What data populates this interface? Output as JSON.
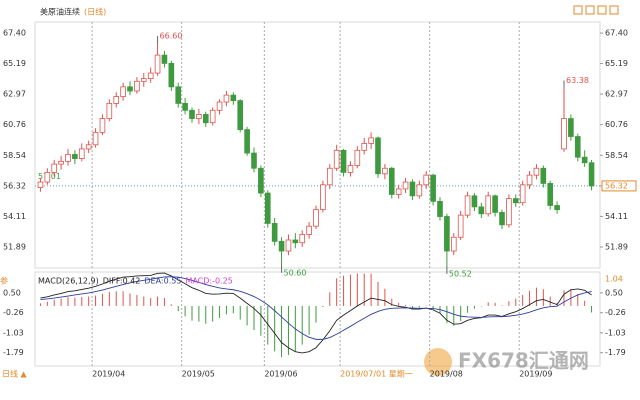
{
  "chart_data": {
    "type": "candlestick",
    "title": "美原油连续",
    "period": "(日线)",
    "ylim": [
      50.37,
      68.2
    ],
    "yticks": [
      {
        "value": 67.4,
        "label": "67.40"
      },
      65.19,
      62.97,
      60.76,
      58.54,
      56.32,
      54.11,
      51.89
    ],
    "xticks": [
      {
        "value": 8,
        "label": "2019/04"
      },
      {
        "value": 21,
        "label": "2019/05"
      },
      {
        "value": 33,
        "label": "2019/06"
      },
      {
        "value": 44,
        "label": "2019/07/01 星期一"
      },
      {
        "value": 57,
        "label": "2019/08"
      },
      {
        "value": 70,
        "label": "2019/09"
      }
    ],
    "highlight_xtick": 3,
    "up_color": "#e0524c",
    "down_color": "#3f9a3f",
    "ohlc": [
      [
        56.2,
        56.9,
        55.9,
        56.6
      ],
      [
        56.6,
        57.6,
        56.4,
        57.3
      ],
      [
        57.3,
        58.2,
        57.0,
        57.9
      ],
      [
        57.9,
        58.5,
        57.5,
        58.1
      ],
      [
        58.1,
        59.0,
        57.8,
        58.6
      ],
      [
        58.6,
        58.9,
        57.9,
        58.3
      ],
      [
        58.3,
        59.4,
        58.1,
        59.0
      ],
      [
        59.0,
        59.6,
        58.7,
        59.3
      ],
      [
        59.3,
        60.5,
        59.1,
        60.2
      ],
      [
        60.2,
        61.5,
        60.0,
        61.2
      ],
      [
        61.2,
        62.6,
        61.0,
        62.3
      ],
      [
        62.3,
        63.1,
        62.0,
        62.8
      ],
      [
        62.8,
        63.8,
        62.5,
        63.5
      ],
      [
        63.5,
        63.9,
        62.9,
        63.2
      ],
      [
        63.2,
        64.2,
        63.0,
        63.9
      ],
      [
        63.9,
        64.5,
        63.5,
        64.1
      ],
      [
        64.1,
        64.9,
        63.8,
        64.5
      ],
      [
        64.5,
        66.6,
        64.3,
        65.8
      ],
      [
        65.8,
        66.1,
        64.9,
        65.2
      ],
      [
        65.2,
        65.4,
        63.2,
        63.5
      ],
      [
        63.5,
        63.8,
        62.0,
        62.3
      ],
      [
        62.3,
        62.7,
        61.5,
        61.8
      ],
      [
        61.8,
        62.0,
        60.9,
        61.2
      ],
      [
        61.2,
        61.9,
        60.8,
        61.5
      ],
      [
        61.5,
        61.7,
        60.6,
        60.9
      ],
      [
        60.9,
        62.0,
        60.7,
        61.8
      ],
      [
        61.8,
        62.6,
        61.5,
        62.4
      ],
      [
        62.4,
        63.2,
        62.1,
        62.9
      ],
      [
        62.9,
        63.1,
        62.2,
        62.5
      ],
      [
        62.5,
        62.6,
        60.2,
        60.4
      ],
      [
        60.4,
        60.6,
        58.5,
        58.7
      ],
      [
        58.7,
        59.1,
        57.3,
        57.6
      ],
      [
        57.6,
        57.8,
        55.5,
        55.8
      ],
      [
        55.8,
        56.0,
        53.3,
        53.6
      ],
      [
        53.6,
        54.0,
        52.0,
        52.3
      ],
      [
        52.3,
        52.6,
        50.6,
        51.6
      ],
      [
        51.6,
        52.8,
        51.3,
        52.4
      ],
      [
        52.4,
        52.9,
        51.8,
        52.2
      ],
      [
        52.2,
        53.1,
        51.9,
        52.8
      ],
      [
        52.8,
        53.7,
        52.5,
        53.4
      ],
      [
        53.4,
        54.9,
        53.2,
        54.6
      ],
      [
        54.6,
        56.7,
        54.4,
        56.4
      ],
      [
        56.4,
        57.9,
        56.1,
        57.6
      ],
      [
        57.6,
        59.3,
        57.4,
        58.9
      ],
      [
        58.9,
        59.0,
        57.0,
        57.3
      ],
      [
        57.3,
        58.1,
        57.0,
        57.8
      ],
      [
        57.8,
        59.2,
        57.6,
        58.9
      ],
      [
        58.9,
        59.8,
        58.6,
        59.4
      ],
      [
        59.4,
        60.2,
        59.0,
        59.8
      ],
      [
        59.8,
        59.9,
        56.9,
        57.2
      ],
      [
        57.2,
        57.9,
        56.8,
        57.6
      ],
      [
        57.6,
        57.7,
        55.4,
        55.7
      ],
      [
        55.7,
        56.4,
        55.4,
        56.1
      ],
      [
        56.1,
        56.9,
        55.8,
        56.6
      ],
      [
        56.6,
        56.8,
        55.3,
        55.6
      ],
      [
        55.6,
        56.7,
        55.4,
        56.4
      ],
      [
        56.4,
        57.4,
        56.1,
        57.1
      ],
      [
        57.1,
        57.2,
        54.9,
        55.2
      ],
      [
        55.2,
        55.5,
        53.8,
        54.1
      ],
      [
        54.1,
        54.3,
        50.52,
        51.6
      ],
      [
        51.6,
        52.9,
        51.3,
        52.6
      ],
      [
        52.6,
        54.5,
        52.4,
        54.2
      ],
      [
        54.2,
        55.9,
        54.0,
        55.6
      ],
      [
        55.6,
        55.8,
        54.5,
        54.8
      ],
      [
        54.8,
        55.1,
        54.0,
        54.3
      ],
      [
        54.3,
        55.9,
        54.1,
        55.6
      ],
      [
        55.6,
        55.7,
        54.1,
        54.4
      ],
      [
        54.4,
        54.6,
        53.2,
        53.5
      ],
      [
        53.5,
        55.7,
        53.3,
        55.4
      ],
      [
        55.4,
        55.7,
        54.8,
        55.1
      ],
      [
        55.1,
        56.7,
        54.9,
        56.4
      ],
      [
        56.4,
        57.4,
        56.1,
        57.1
      ],
      [
        57.1,
        57.9,
        56.8,
        57.6
      ],
      [
        57.6,
        57.8,
        56.2,
        56.5
      ],
      [
        56.5,
        56.7,
        54.6,
        54.9
      ],
      [
        54.9,
        55.2,
        54.3,
        54.6
      ],
      [
        59.0,
        63.38,
        58.8,
        61.2
      ],
      [
        61.2,
        61.5,
        59.6,
        59.9
      ],
      [
        59.9,
        60.1,
        58.1,
        58.4
      ],
      [
        58.4,
        58.9,
        57.7,
        58.0
      ],
      [
        58.0,
        58.2,
        56.0,
        56.32
      ]
    ],
    "extremes": [
      {
        "value": 66.6,
        "label": "66.60",
        "kind": "high"
      },
      {
        "value": 50.6,
        "label": "50.60",
        "kind": "low"
      },
      {
        "value": 50.52,
        "label": "50.52",
        "kind": "low"
      },
      {
        "value": 63.38,
        "label": "63.38",
        "kind": "high"
      }
    ],
    "left_price": {
      "value": 57.01,
      "label": "57.01"
    },
    "current_price": 56.32,
    "macd": {
      "legend": [
        "MACD(26,12,9)",
        "DIFF:0.42",
        "DEA:0.55",
        "MACD:-0.25"
      ],
      "legend_colors": [
        "#222222",
        "#222222",
        "#2b3f9e",
        "#d03fd0"
      ],
      "ylim": [
        -2.3,
        1.3
      ],
      "yticks": [
        {
          "value": 0.5,
          "label": "0.50"
        },
        -0.26,
        -1.03,
        -1.79
      ],
      "marker": {
        "value": 1.04,
        "label": "1.04"
      },
      "diff_color": "#222222",
      "dea_color": "#2b3f9e",
      "diff": [
        0.3,
        0.35,
        0.42,
        0.48,
        0.55,
        0.58,
        0.63,
        0.68,
        0.75,
        0.84,
        0.95,
        1.03,
        1.1,
        1.12,
        1.15,
        1.16,
        1.17,
        1.25,
        1.26,
        1.15,
        1.0,
        0.85,
        0.7,
        0.6,
        0.48,
        0.45,
        0.46,
        0.49,
        0.48,
        0.3,
        0.1,
        -0.1,
        -0.35,
        -0.7,
        -1.05,
        -1.4,
        -1.6,
        -1.75,
        -1.8,
        -1.75,
        -1.6,
        -1.3,
        -0.95,
        -0.55,
        -0.35,
        -0.18,
        0.0,
        0.15,
        0.3,
        0.25,
        0.2,
        0.05,
        -0.02,
        -0.05,
        -0.12,
        -0.12,
        -0.08,
        -0.15,
        -0.28,
        -0.55,
        -0.7,
        -0.68,
        -0.55,
        -0.48,
        -0.45,
        -0.35,
        -0.35,
        -0.4,
        -0.3,
        -0.22,
        -0.1,
        0.05,
        0.2,
        0.25,
        0.15,
        0.05,
        0.45,
        0.62,
        0.65,
        0.6,
        0.42
      ],
      "dea": [
        0.25,
        0.27,
        0.3,
        0.34,
        0.38,
        0.42,
        0.46,
        0.5,
        0.55,
        0.61,
        0.68,
        0.75,
        0.82,
        0.88,
        0.94,
        0.98,
        1.02,
        1.07,
        1.11,
        1.12,
        1.1,
        1.05,
        0.98,
        0.9,
        0.82,
        0.75,
        0.69,
        0.65,
        0.62,
        0.56,
        0.47,
        0.36,
        0.22,
        0.04,
        -0.18,
        -0.42,
        -0.66,
        -0.88,
        -1.06,
        -1.2,
        -1.28,
        -1.28,
        -1.21,
        -1.08,
        -0.93,
        -0.78,
        -0.62,
        -0.47,
        -0.32,
        -0.21,
        -0.13,
        -0.09,
        -0.08,
        -0.07,
        -0.08,
        -0.09,
        -0.09,
        -0.1,
        -0.14,
        -0.22,
        -0.32,
        -0.39,
        -0.42,
        -0.43,
        -0.44,
        -0.42,
        -0.41,
        -0.41,
        -0.39,
        -0.36,
        -0.31,
        -0.24,
        -0.15,
        -0.07,
        -0.03,
        -0.01,
        0.15,
        0.3,
        0.42,
        0.5,
        0.55
      ],
      "hist": [
        0.1,
        0.16,
        0.24,
        0.28,
        0.34,
        0.32,
        0.34,
        0.36,
        0.4,
        0.46,
        0.54,
        0.56,
        0.56,
        0.48,
        0.42,
        0.36,
        0.3,
        0.36,
        0.3,
        0.06,
        -0.2,
        -0.4,
        -0.56,
        -0.6,
        -0.68,
        -0.6,
        -0.46,
        -0.32,
        -0.28,
        -0.52,
        -0.74,
        -0.92,
        -1.14,
        -1.48,
        -1.74,
        -1.96,
        -1.88,
        -1.74,
        -1.48,
        -1.1,
        -0.64,
        -0.04,
        0.52,
        1.06,
        1.16,
        1.2,
        1.24,
        1.24,
        1.24,
        0.92,
        0.66,
        0.28,
        0.12,
        0.04,
        -0.08,
        -0.06,
        0.02,
        -0.1,
        -0.28,
        -0.66,
        -0.76,
        -0.58,
        -0.26,
        -0.1,
        -0.02,
        0.14,
        0.12,
        0.02,
        0.18,
        0.28,
        0.42,
        0.58,
        0.7,
        0.64,
        0.36,
        0.12,
        0.6,
        0.64,
        0.46,
        0.2,
        -0.25
      ]
    },
    "indicator_tab": "参",
    "period_tab": "日线 ▲",
    "watermark": "FX678汇通网"
  }
}
